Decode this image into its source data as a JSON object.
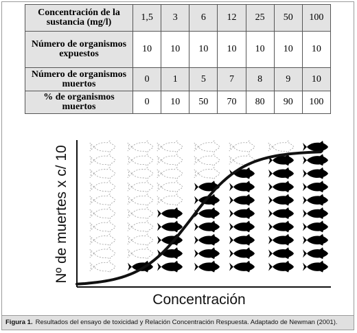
{
  "table": {
    "headers": [
      "Concentración de la sustancia (mg/l)",
      "Número de organismos expuestos",
      "Número de organismos muertos",
      "% de organismos muertos"
    ],
    "rows": [
      [
        "1,5",
        "3",
        "6",
        "12",
        "25",
        "50",
        "100"
      ],
      [
        "10",
        "10",
        "10",
        "10",
        "10",
        "10",
        "10"
      ],
      [
        "0",
        "1",
        "5",
        "7",
        "8",
        "9",
        "10"
      ],
      [
        "0",
        "10",
        "50",
        "70",
        "80",
        "90",
        "100"
      ]
    ]
  },
  "figure": {
    "ylabel": "Nº de muertes x c/ 10",
    "xlabel": "Concentración",
    "fish_icon": "fish-icon",
    "columns_dead": [
      0,
      1,
      5,
      7,
      8,
      9,
      10
    ]
  },
  "caption": {
    "label": "Figura 1.",
    "text": "Resultados del ensayo de toxicidad y Relación Concentración Respuesta. Adaptado de Newman (2001)."
  },
  "colors": {
    "fish_dead": "#000000",
    "fish_alive": "#9a9a9a",
    "table_shade": "#e3e3e3"
  }
}
